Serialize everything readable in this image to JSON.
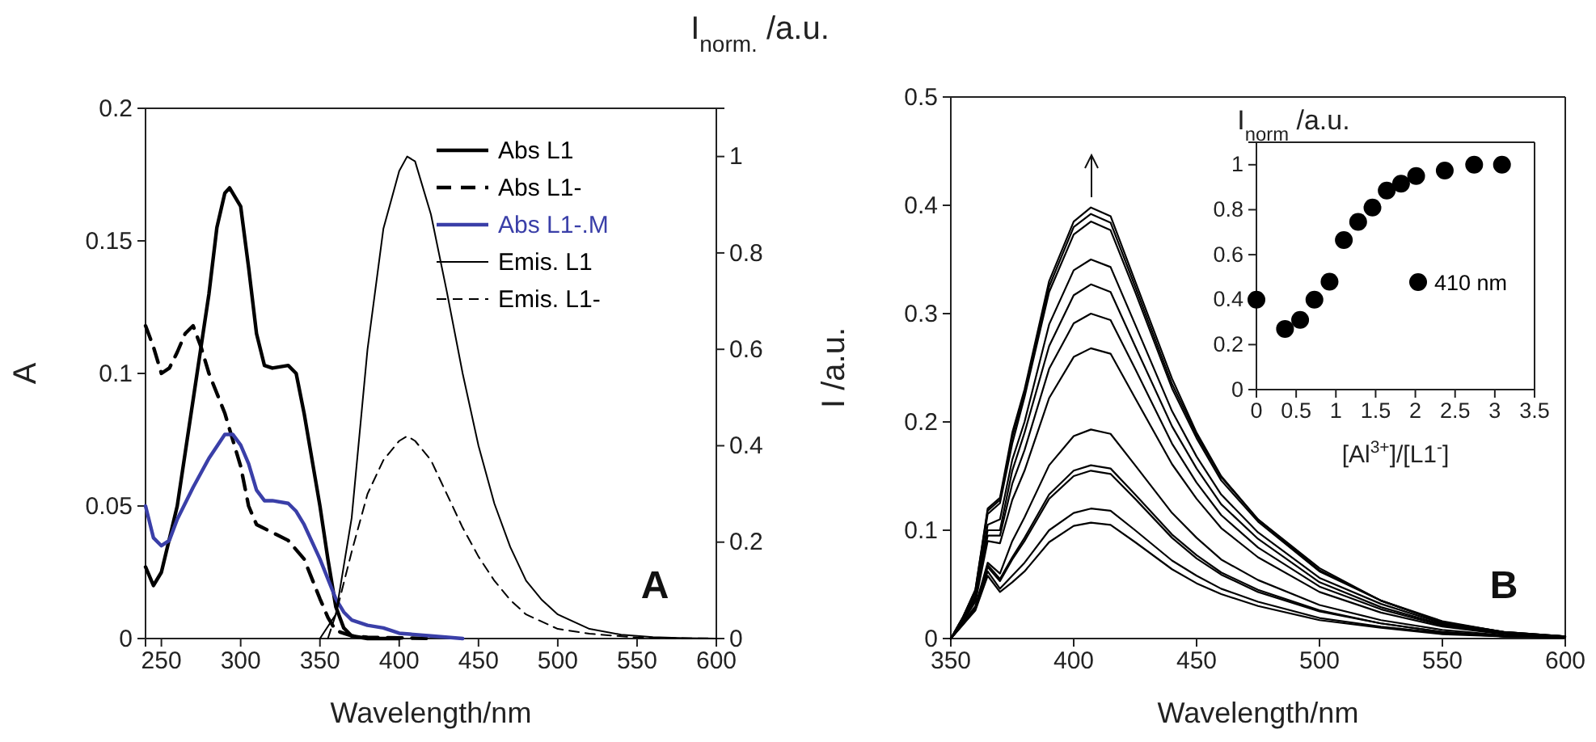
{
  "chart_data": [
    {
      "type": "line",
      "xlabel": "Wavelength/nm",
      "ylabel": "A",
      "y2label": "I$_{norm.}$ /a.u.",
      "xlim": [
        240,
        600
      ],
      "xticks": [
        250,
        300,
        350,
        400,
        450,
        500,
        550,
        600
      ],
      "ylim": [
        0,
        0.2
      ],
      "yticks": [
        0,
        0.05,
        0.1,
        0.15,
        0.2
      ],
      "y2lim": [
        0,
        1.1
      ],
      "y2ticks": [
        0,
        0.2,
        0.4,
        0.6,
        0.8,
        1
      ],
      "legend": "top right",
      "annotations": [
        "A"
      ],
      "series": [
        {
          "name": "Abs L1",
          "color": "#000000",
          "line_style": "solid",
          "x": [
            240,
            245,
            250,
            260,
            270,
            280,
            285,
            290,
            293,
            300,
            305,
            310,
            315,
            320,
            330,
            335,
            340,
            350,
            355,
            360,
            365,
            370,
            380,
            400
          ],
          "values": [
            0.027,
            0.02,
            0.025,
            0.05,
            0.09,
            0.13,
            0.155,
            0.168,
            0.17,
            0.163,
            0.14,
            0.115,
            0.103,
            0.102,
            0.103,
            0.1,
            0.085,
            0.05,
            0.03,
            0.012,
            0.004,
            0.001,
            0,
            0
          ]
        },
        {
          "name": "Abs L1-",
          "color": "#000000",
          "line_style": "dashed",
          "x": [
            240,
            245,
            250,
            255,
            260,
            265,
            270,
            275,
            280,
            290,
            300,
            305,
            310,
            320,
            330,
            340,
            350,
            355,
            360,
            370,
            380,
            420
          ],
          "values": [
            0.118,
            0.11,
            0.1,
            0.102,
            0.108,
            0.115,
            0.118,
            0.11,
            0.1,
            0.085,
            0.065,
            0.05,
            0.043,
            0.04,
            0.037,
            0.03,
            0.015,
            0.008,
            0.003,
            0.001,
            0.0005,
            0
          ]
        },
        {
          "name": "Abs L1-.M",
          "color": "#3a3fa8",
          "line_style": "solid",
          "x": [
            240,
            245,
            250,
            255,
            260,
            270,
            280,
            290,
            295,
            300,
            305,
            310,
            315,
            320,
            330,
            335,
            340,
            350,
            360,
            365,
            370,
            380,
            390,
            400,
            420,
            440
          ],
          "values": [
            0.05,
            0.038,
            0.035,
            0.037,
            0.045,
            0.057,
            0.068,
            0.077,
            0.077,
            0.073,
            0.066,
            0.056,
            0.052,
            0.052,
            0.051,
            0.048,
            0.043,
            0.03,
            0.015,
            0.01,
            0.007,
            0.005,
            0.004,
            0.002,
            0.001,
            0
          ]
        },
        {
          "name": "Emis. L1",
          "color": "#000000",
          "line_style": "solid",
          "axis": "y2",
          "x": [
            350,
            360,
            370,
            380,
            390,
            400,
            405,
            410,
            420,
            430,
            440,
            450,
            460,
            470,
            480,
            490,
            500,
            520,
            540,
            560,
            580,
            600
          ],
          "values": [
            0,
            0.05,
            0.25,
            0.6,
            0.85,
            0.97,
            1,
            0.99,
            0.88,
            0.72,
            0.55,
            0.4,
            0.28,
            0.19,
            0.12,
            0.08,
            0.05,
            0.02,
            0.008,
            0.003,
            0.001,
            0
          ]
        },
        {
          "name": "Emis. L1-",
          "color": "#000000",
          "line_style": "dashed",
          "axis": "y2",
          "x": [
            355,
            360,
            370,
            380,
            390,
            400,
            405,
            410,
            420,
            430,
            440,
            450,
            460,
            470,
            480,
            500,
            520,
            550,
            600
          ],
          "values": [
            0,
            0.05,
            0.18,
            0.3,
            0.37,
            0.41,
            0.42,
            0.41,
            0.37,
            0.3,
            0.23,
            0.17,
            0.12,
            0.08,
            0.05,
            0.02,
            0.01,
            0.002,
            0
          ]
        }
      ]
    },
    {
      "type": "line",
      "xlabel": "Wavelength/nm",
      "ylabel": "I /a.u.",
      "xlim": [
        350,
        600
      ],
      "xticks": [
        350,
        400,
        450,
        500,
        550,
        600
      ],
      "ylim": [
        0,
        0.5
      ],
      "yticks": [
        0,
        0.1,
        0.2,
        0.3,
        0.4,
        0.5
      ],
      "annotations": [
        "B"
      ],
      "x": [
        350,
        355,
        360,
        365,
        370,
        375,
        380,
        390,
        400,
        407,
        415,
        425,
        440,
        450,
        460,
        475,
        500,
        525,
        550,
        575,
        600
      ],
      "series": [
        {
          "color": "#000000",
          "values": [
            0,
            0.02,
            0.045,
            0.12,
            0.13,
            0.19,
            0.23,
            0.33,
            0.385,
            0.398,
            0.39,
            0.33,
            0.24,
            0.19,
            0.15,
            0.11,
            0.065,
            0.035,
            0.015,
            0.006,
            0.002
          ]
        },
        {
          "color": "#000000",
          "values": [
            0,
            0.02,
            0.045,
            0.118,
            0.128,
            0.186,
            0.227,
            0.325,
            0.38,
            0.392,
            0.384,
            0.325,
            0.235,
            0.188,
            0.149,
            0.11,
            0.063,
            0.035,
            0.016,
            0.006,
            0.002
          ]
        },
        {
          "color": "#000000",
          "values": [
            0,
            0.02,
            0.043,
            0.115,
            0.125,
            0.18,
            0.223,
            0.32,
            0.373,
            0.385,
            0.377,
            0.32,
            0.231,
            0.185,
            0.146,
            0.108,
            0.062,
            0.035,
            0.015,
            0.006,
            0.002
          ]
        },
        {
          "color": "#000000",
          "values": [
            0,
            0.018,
            0.04,
            0.105,
            0.11,
            0.165,
            0.2,
            0.29,
            0.34,
            0.35,
            0.343,
            0.29,
            0.21,
            0.168,
            0.133,
            0.098,
            0.056,
            0.032,
            0.014,
            0.005,
            0.002
          ]
        },
        {
          "color": "#000000",
          "values": [
            0,
            0.018,
            0.038,
            0.1,
            0.1,
            0.155,
            0.19,
            0.27,
            0.317,
            0.327,
            0.32,
            0.27,
            0.196,
            0.157,
            0.124,
            0.092,
            0.052,
            0.029,
            0.013,
            0.005,
            0.002
          ]
        },
        {
          "color": "#000000",
          "values": [
            0,
            0.017,
            0.036,
            0.095,
            0.095,
            0.143,
            0.174,
            0.249,
            0.291,
            0.3,
            0.294,
            0.249,
            0.18,
            0.144,
            0.114,
            0.084,
            0.048,
            0.027,
            0.012,
            0.005,
            0.002
          ]
        },
        {
          "color": "#000000",
          "values": [
            0,
            0.016,
            0.034,
            0.09,
            0.088,
            0.128,
            0.155,
            0.222,
            0.26,
            0.268,
            0.263,
            0.222,
            0.161,
            0.129,
            0.102,
            0.075,
            0.043,
            0.024,
            0.011,
            0.004,
            0.001
          ]
        },
        {
          "color": "#000000",
          "values": [
            0,
            0.015,
            0.03,
            0.07,
            0.06,
            0.09,
            0.112,
            0.16,
            0.187,
            0.193,
            0.189,
            0.16,
            0.116,
            0.093,
            0.073,
            0.054,
            0.031,
            0.017,
            0.008,
            0.003,
            0.001
          ]
        },
        {
          "color": "#000000",
          "values": [
            0,
            0.014,
            0.028,
            0.068,
            0.055,
            0.075,
            0.093,
            0.133,
            0.155,
            0.16,
            0.157,
            0.133,
            0.096,
            0.077,
            0.061,
            0.045,
            0.026,
            0.014,
            0.006,
            0.002,
            0.001
          ]
        },
        {
          "color": "#000000",
          "values": [
            0,
            0.014,
            0.028,
            0.066,
            0.053,
            0.073,
            0.09,
            0.129,
            0.15,
            0.155,
            0.152,
            0.129,
            0.093,
            0.074,
            0.059,
            0.043,
            0.025,
            0.014,
            0.006,
            0.002,
            0.001
          ]
        },
        {
          "color": "#000000",
          "values": [
            0,
            0.013,
            0.027,
            0.062,
            0.046,
            0.058,
            0.07,
            0.1,
            0.116,
            0.12,
            0.118,
            0.1,
            0.072,
            0.058,
            0.046,
            0.034,
            0.019,
            0.011,
            0.005,
            0.002,
            0.001
          ]
        },
        {
          "color": "#000000",
          "values": [
            0,
            0.013,
            0.026,
            0.058,
            0.043,
            0.052,
            0.062,
            0.089,
            0.104,
            0.107,
            0.105,
            0.089,
            0.064,
            0.051,
            0.041,
            0.03,
            0.017,
            0.01,
            0.004,
            0.002,
            0.001
          ]
        }
      ]
    },
    {
      "type": "scatter",
      "xlabel": "[Al$^{3+}$]/[L1$^{-}$]",
      "ylabel": "I$_{norm}$ /a.u.",
      "xlim": [
        0,
        3.5
      ],
      "xticks": [
        0,
        0.5,
        1,
        1.5,
        2,
        2.5,
        3,
        3.5
      ],
      "ylim": [
        0,
        1.1
      ],
      "yticks": [
        0,
        0.2,
        0.4,
        0.6,
        0.8,
        1
      ],
      "legend": "right",
      "marker": "circle",
      "x": [
        0,
        0.36,
        0.55,
        0.73,
        0.92,
        1.1,
        1.28,
        1.46,
        1.64,
        1.82,
        2.01,
        2.37,
        2.74,
        3.09
      ],
      "series": [
        {
          "name": "410 nm",
          "color": "#000000",
          "values": [
            0.4,
            0.27,
            0.31,
            0.4,
            0.48,
            0.665,
            0.746,
            0.81,
            0.885,
            0.916,
            0.95,
            0.974,
            1,
            1
          ]
        }
      ]
    }
  ]
}
